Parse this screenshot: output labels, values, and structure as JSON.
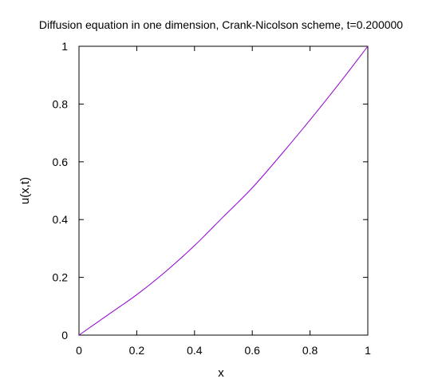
{
  "chart_data": {
    "type": "line",
    "title": "Diffusion equation in one dimension, Crank-Nicolson scheme, t=0.200000",
    "xlabel": "x",
    "ylabel": "u(x,t)",
    "xlim": [
      0,
      1
    ],
    "ylim": [
      0,
      1
    ],
    "xticks": [
      "0",
      "0.2",
      "0.4",
      "0.6",
      "0.8",
      "1"
    ],
    "yticks": [
      "0",
      "0.2",
      "0.4",
      "0.6",
      "0.8",
      "1"
    ],
    "grid": false,
    "legend": "none",
    "series": [
      {
        "color": "#9400d3",
        "x": [
          0,
          0.1,
          0.2,
          0.3,
          0.4,
          0.5,
          0.6,
          0.7,
          0.8,
          0.9,
          1.0
        ],
        "y": [
          0,
          0.07,
          0.14,
          0.22,
          0.31,
          0.41,
          0.51,
          0.625,
          0.745,
          0.87,
          1.0
        ]
      }
    ]
  }
}
